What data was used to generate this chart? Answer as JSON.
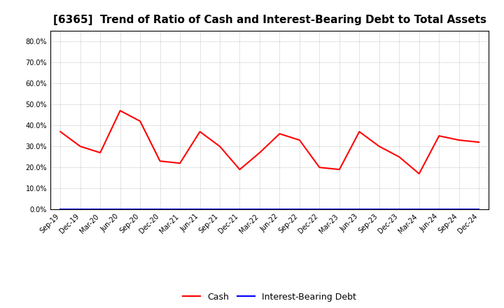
{
  "title": "[6365]  Trend of Ratio of Cash and Interest-Bearing Debt to Total Assets",
  "x_labels": [
    "Sep-19",
    "Dec-19",
    "Mar-20",
    "Jun-20",
    "Sep-20",
    "Dec-20",
    "Mar-21",
    "Jun-21",
    "Sep-21",
    "Dec-21",
    "Mar-22",
    "Jun-22",
    "Sep-22",
    "Dec-22",
    "Mar-23",
    "Jun-23",
    "Sep-23",
    "Dec-23",
    "Mar-24",
    "Jun-24",
    "Sep-24",
    "Dec-24"
  ],
  "cash": [
    0.37,
    0.3,
    0.27,
    0.47,
    0.42,
    0.23,
    0.22,
    0.37,
    0.3,
    0.19,
    0.27,
    0.36,
    0.33,
    0.2,
    0.19,
    0.37,
    0.3,
    0.25,
    0.17,
    0.35,
    0.33,
    0.32
  ],
  "interest_bearing_debt": [
    0.0,
    0.0,
    0.0,
    0.0,
    0.0,
    0.0,
    0.0,
    0.0,
    0.0,
    0.0,
    0.0,
    0.0,
    0.0,
    0.0,
    0.0,
    0.0,
    0.0,
    0.0,
    0.0,
    0.0,
    0.0,
    0.0
  ],
  "cash_color": "#FF0000",
  "debt_color": "#0000FF",
  "ylim": [
    0.0,
    0.85
  ],
  "yticks": [
    0.0,
    0.1,
    0.2,
    0.3,
    0.4,
    0.5,
    0.6,
    0.7,
    0.8
  ],
  "background_color": "#FFFFFF",
  "grid_color": "#999999",
  "title_fontsize": 11,
  "tick_fontsize": 7,
  "legend_labels": [
    "Cash",
    "Interest-Bearing Debt"
  ]
}
